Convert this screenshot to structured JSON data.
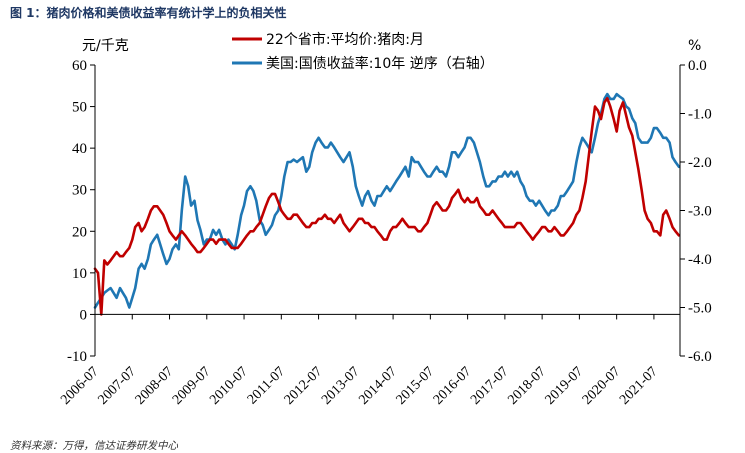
{
  "figure_title": "图 1：猪肉价格和美债收益率有统计学上的负相关性",
  "source_note": "资料来源：万得，信达证券研发中心",
  "chart_data": {
    "type": "line",
    "left_unit": "元/千克",
    "right_unit": "%",
    "left_axis": {
      "min": -10,
      "max": 60,
      "ticks": [
        "-10",
        "0",
        "10",
        "20",
        "30",
        "40",
        "50",
        "60"
      ]
    },
    "right_axis": {
      "min": -6.0,
      "max": 0.0,
      "ticks": [
        "-6.0",
        "-5.0",
        "-4.0",
        "-3.0",
        "-2.0",
        "-1.0",
        "0.0"
      ]
    },
    "x_tick_labels": [
      "2006-07",
      "2007-07",
      "2008-07",
      "2009-07",
      "2010-07",
      "2011-07",
      "2012-07",
      "2013-07",
      "2014-07",
      "2015-07",
      "2016-07",
      "2017-07",
      "2018-07",
      "2019-07",
      "2020-07",
      "2021-07"
    ],
    "series": [
      {
        "name": "22个省市:平均价:猪肉:月",
        "axis": "left",
        "color": "#c00000",
        "x": [
          2006.5,
          2006.58,
          2006.67,
          2006.75,
          2006.83,
          2006.92,
          2007.0,
          2007.08,
          2007.17,
          2007.25,
          2007.33,
          2007.42,
          2007.5,
          2007.58,
          2007.67,
          2007.75,
          2007.83,
          2007.92,
          2008.0,
          2008.08,
          2008.17,
          2008.25,
          2008.33,
          2008.42,
          2008.5,
          2008.58,
          2008.67,
          2008.75,
          2008.83,
          2008.92,
          2009.0,
          2009.08,
          2009.17,
          2009.25,
          2009.33,
          2009.42,
          2009.5,
          2009.58,
          2009.67,
          2009.75,
          2009.83,
          2009.92,
          2010.0,
          2010.08,
          2010.17,
          2010.25,
          2010.33,
          2010.42,
          2010.5,
          2010.58,
          2010.67,
          2010.75,
          2010.83,
          2010.92,
          2011.0,
          2011.08,
          2011.17,
          2011.25,
          2011.33,
          2011.42,
          2011.5,
          2011.58,
          2011.67,
          2011.75,
          2011.83,
          2011.92,
          2012.0,
          2012.08,
          2012.17,
          2012.25,
          2012.33,
          2012.42,
          2012.5,
          2012.58,
          2012.67,
          2012.75,
          2012.83,
          2012.92,
          2013.0,
          2013.08,
          2013.17,
          2013.25,
          2013.33,
          2013.42,
          2013.5,
          2013.58,
          2013.67,
          2013.75,
          2013.83,
          2013.92,
          2014.0,
          2014.08,
          2014.17,
          2014.25,
          2014.33,
          2014.42,
          2014.5,
          2014.58,
          2014.67,
          2014.75,
          2014.83,
          2014.92,
          2015.0,
          2015.08,
          2015.17,
          2015.25,
          2015.33,
          2015.42,
          2015.5,
          2015.58,
          2015.67,
          2015.75,
          2015.83,
          2015.92,
          2016.0,
          2016.08,
          2016.17,
          2016.25,
          2016.33,
          2016.42,
          2016.5,
          2016.58,
          2016.67,
          2016.75,
          2016.83,
          2016.92,
          2017.0,
          2017.08,
          2017.17,
          2017.25,
          2017.33,
          2017.42,
          2017.5,
          2017.58,
          2017.67,
          2017.75,
          2017.83,
          2017.92,
          2018.0,
          2018.08,
          2018.17,
          2018.25,
          2018.33,
          2018.42,
          2018.5,
          2018.58,
          2018.67,
          2018.75,
          2018.83,
          2018.92,
          2019.0,
          2019.08,
          2019.17,
          2019.25,
          2019.33,
          2019.42,
          2019.5,
          2019.58,
          2019.67,
          2019.75,
          2019.83,
          2019.92,
          2020.0,
          2020.08,
          2020.17,
          2020.25,
          2020.33,
          2020.42,
          2020.5,
          2020.58,
          2020.67,
          2020.75,
          2020.83,
          2020.92,
          2021.0,
          2021.08,
          2021.17,
          2021.25,
          2021.33,
          2021.42,
          2021.5,
          2021.58,
          2021.67,
          2021.75,
          2021.83,
          2021.92,
          2022.0,
          2022.08,
          2022.17
        ],
        "values": [
          11,
          10,
          0,
          13,
          12,
          13,
          14,
          15,
          14,
          14,
          15,
          16,
          18,
          21,
          22,
          20,
          21,
          23,
          25,
          26,
          26,
          25,
          24,
          22,
          20,
          19,
          18,
          19,
          20,
          19,
          18,
          17,
          16,
          15,
          15,
          16,
          17,
          18,
          18,
          17,
          18,
          18,
          18,
          17,
          16,
          16,
          16,
          17,
          18,
          19,
          20,
          20,
          21,
          22,
          24,
          26,
          28,
          29,
          29,
          27,
          25,
          24,
          23,
          23,
          24,
          24,
          23,
          22,
          21,
          21,
          22,
          22,
          23,
          23,
          24,
          23,
          23,
          22,
          23,
          24,
          22,
          21,
          20,
          21,
          22,
          23,
          23,
          22,
          22,
          21,
          21,
          20,
          19,
          18,
          18,
          20,
          21,
          21,
          22,
          23,
          22,
          21,
          21,
          21,
          20,
          20,
          21,
          22,
          24,
          26,
          27,
          26,
          25,
          25,
          26,
          28,
          29,
          30,
          28,
          27,
          28,
          27,
          27,
          28,
          26,
          25,
          24,
          24,
          25,
          24,
          23,
          22,
          21,
          21,
          21,
          21,
          22,
          22,
          21,
          20,
          19,
          18,
          19,
          20,
          21,
          21,
          20,
          20,
          21,
          20,
          19,
          19,
          20,
          21,
          22,
          24,
          25,
          28,
          32,
          38,
          44,
          50,
          49,
          47,
          51,
          52,
          50,
          47,
          44,
          49,
          51,
          48,
          45,
          43,
          39,
          35,
          30,
          25,
          23,
          22,
          20,
          20,
          19,
          24,
          25,
          23,
          21,
          20,
          19
        ]
      },
      {
        "name": "美国:国债收益率:10年 逆序（右轴）",
        "axis": "right",
        "color": "#1f77b4",
        "x": [
          2006.5,
          2006.58,
          2006.67,
          2006.75,
          2006.83,
          2006.92,
          2007.0,
          2007.08,
          2007.17,
          2007.25,
          2007.33,
          2007.42,
          2007.5,
          2007.58,
          2007.67,
          2007.75,
          2007.83,
          2007.92,
          2008.0,
          2008.08,
          2008.17,
          2008.25,
          2008.33,
          2008.42,
          2008.5,
          2008.58,
          2008.67,
          2008.75,
          2008.83,
          2008.92,
          2009.0,
          2009.08,
          2009.17,
          2009.25,
          2009.33,
          2009.42,
          2009.5,
          2009.58,
          2009.67,
          2009.75,
          2009.83,
          2009.92,
          2010.0,
          2010.08,
          2010.17,
          2010.25,
          2010.33,
          2010.42,
          2010.5,
          2010.58,
          2010.67,
          2010.75,
          2010.83,
          2010.92,
          2011.0,
          2011.08,
          2011.17,
          2011.25,
          2011.33,
          2011.42,
          2011.5,
          2011.58,
          2011.67,
          2011.75,
          2011.83,
          2011.92,
          2012.0,
          2012.08,
          2012.17,
          2012.25,
          2012.33,
          2012.42,
          2012.5,
          2012.58,
          2012.67,
          2012.75,
          2012.83,
          2012.92,
          2013.0,
          2013.08,
          2013.17,
          2013.25,
          2013.33,
          2013.42,
          2013.5,
          2013.58,
          2013.67,
          2013.75,
          2013.83,
          2013.92,
          2014.0,
          2014.08,
          2014.17,
          2014.25,
          2014.33,
          2014.42,
          2014.5,
          2014.58,
          2014.67,
          2014.75,
          2014.83,
          2014.92,
          2015.0,
          2015.08,
          2015.17,
          2015.25,
          2015.33,
          2015.42,
          2015.5,
          2015.58,
          2015.67,
          2015.75,
          2015.83,
          2015.92,
          2016.0,
          2016.08,
          2016.17,
          2016.25,
          2016.33,
          2016.42,
          2016.5,
          2016.58,
          2016.67,
          2016.75,
          2016.83,
          2016.92,
          2017.0,
          2017.08,
          2017.17,
          2017.25,
          2017.33,
          2017.42,
          2017.5,
          2017.58,
          2017.67,
          2017.75,
          2017.83,
          2017.92,
          2018.0,
          2018.08,
          2018.17,
          2018.25,
          2018.33,
          2018.42,
          2018.5,
          2018.58,
          2018.67,
          2018.75,
          2018.83,
          2018.92,
          2019.0,
          2019.08,
          2019.17,
          2019.25,
          2019.33,
          2019.42,
          2019.5,
          2019.58,
          2019.67,
          2019.75,
          2019.83,
          2019.92,
          2020.0,
          2020.08,
          2020.17,
          2020.25,
          2020.33,
          2020.42,
          2020.5,
          2020.58,
          2020.67,
          2020.75,
          2020.83,
          2020.92,
          2021.0,
          2021.08,
          2021.17,
          2021.25,
          2021.33,
          2021.42,
          2021.5,
          2021.58,
          2021.67,
          2021.75,
          2021.83,
          2021.92,
          2022.0,
          2022.08,
          2022.17
        ],
        "values": [
          -5.0,
          -4.9,
          -4.8,
          -4.7,
          -4.65,
          -4.6,
          -4.7,
          -4.8,
          -4.6,
          -4.7,
          -4.8,
          -5.0,
          -4.8,
          -4.6,
          -4.2,
          -4.1,
          -4.2,
          -4.0,
          -3.7,
          -3.6,
          -3.5,
          -3.7,
          -3.9,
          -4.1,
          -4.0,
          -3.8,
          -3.7,
          -3.8,
          -3.0,
          -2.3,
          -2.5,
          -2.9,
          -2.8,
          -3.2,
          -3.4,
          -3.7,
          -3.6,
          -3.6,
          -3.4,
          -3.5,
          -3.4,
          -3.6,
          -3.7,
          -3.6,
          -3.7,
          -3.8,
          -3.5,
          -3.1,
          -2.9,
          -2.6,
          -2.5,
          -2.6,
          -2.8,
          -3.2,
          -3.3,
          -3.5,
          -3.4,
          -3.3,
          -3.1,
          -3.0,
          -2.7,
          -2.3,
          -2.0,
          -2.0,
          -1.95,
          -2.0,
          -1.95,
          -1.9,
          -2.2,
          -2.1,
          -1.8,
          -1.6,
          -1.5,
          -1.6,
          -1.7,
          -1.7,
          -1.6,
          -1.7,
          -1.8,
          -1.9,
          -2.0,
          -1.9,
          -1.8,
          -2.1,
          -2.5,
          -2.7,
          -2.9,
          -2.7,
          -2.6,
          -2.8,
          -2.9,
          -2.7,
          -2.7,
          -2.6,
          -2.5,
          -2.6,
          -2.5,
          -2.4,
          -2.3,
          -2.2,
          -2.1,
          -2.3,
          -1.9,
          -2.0,
          -2.0,
          -2.1,
          -2.2,
          -2.3,
          -2.3,
          -2.2,
          -2.1,
          -2.2,
          -2.2,
          -2.3,
          -2.1,
          -1.8,
          -1.8,
          -1.9,
          -1.8,
          -1.7,
          -1.5,
          -1.5,
          -1.6,
          -1.8,
          -2.0,
          -2.3,
          -2.5,
          -2.5,
          -2.4,
          -2.4,
          -2.3,
          -2.3,
          -2.2,
          -2.3,
          -2.2,
          -2.3,
          -2.2,
          -2.4,
          -2.5,
          -2.7,
          -2.8,
          -2.8,
          -2.9,
          -2.8,
          -2.9,
          -3.0,
          -3.1,
          -3.0,
          -3.0,
          -2.9,
          -2.7,
          -2.7,
          -2.6,
          -2.5,
          -2.4,
          -2.0,
          -1.7,
          -1.5,
          -1.6,
          -1.7,
          -1.8,
          -1.5,
          -1.2,
          -1.0,
          -0.7,
          -0.6,
          -0.7,
          -0.7,
          -0.6,
          -0.65,
          -0.7,
          -0.85,
          -0.9,
          -1.1,
          -1.2,
          -1.5,
          -1.6,
          -1.6,
          -1.6,
          -1.5,
          -1.3,
          -1.3,
          -1.4,
          -1.5,
          -1.5,
          -1.6,
          -1.9,
          -2.0,
          -2.1
        ]
      }
    ]
  }
}
